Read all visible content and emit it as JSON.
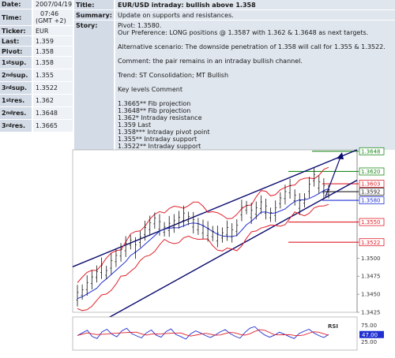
{
  "left_panel": {
    "rows": [
      {
        "label": "Date:",
        "value": "2007/04/19"
      },
      {
        "label": "Time:",
        "value_line1": "07:46",
        "value_line2": "(GMT +2)"
      },
      {
        "label": "Ticker:",
        "value": "EUR"
      },
      {
        "label": "Last:",
        "value": "1.359"
      },
      {
        "label": "Pivot:",
        "value": "1.358"
      },
      {
        "label_num": "1",
        "label_sup": "st",
        "label_rest": " sup.",
        "value": "1.358"
      },
      {
        "label_num": "2",
        "label_sup": "nd",
        "label_rest": " sup.",
        "value": "1.355"
      },
      {
        "label_num": "3",
        "label_sup": "rd",
        "label_rest": " sup.",
        "value": "1.3522"
      },
      {
        "label_num": "1",
        "label_sup": "st",
        "label_rest": " res.",
        "value": "1.362"
      },
      {
        "label_num": "2",
        "label_sup": "nd",
        "label_rest": " res.",
        "value": "1.3648"
      },
      {
        "label_num": "3",
        "label_sup": "rd",
        "label_rest": " res.",
        "value": "1.3665"
      }
    ]
  },
  "story_panel": {
    "title_label": "Title:",
    "title_value": "EUR/USD intraday: bullish above 1.358",
    "summary_label": "Summary:",
    "summary_value": "Update on supports and resistances.",
    "story_label": "Story:",
    "story_lines": [
      "Pivot: 1.3580.",
      "Our Preference: LONG positions @ 1.3587 with 1.362 & 1.3648 as next targets.",
      "",
      "Alternative scenario: The downside penetration of 1.358 will call for 1.355 & 1.3522.",
      "",
      "Comment: the pair remains in an intraday bullish channel.",
      "",
      "Trend: ST Consolidation; MT Bullish",
      "",
      "Key levels Comment",
      "",
      "1.3665** Fib projection",
      "1.3648** Fib projection",
      "1.362* Intraday resistance",
      "1.359 Last",
      "1.358*** Intraday pivot point",
      "1.355** Intraday support",
      "1.3522** Intraday support"
    ]
  },
  "chart_data": {
    "type": "line",
    "instrument": "EUR/USD",
    "price_axis_ticks": [
      1.3648,
      1.362,
      1.3603,
      1.3592,
      1.358,
      1.355,
      1.3522,
      1.35,
      1.3475,
      1.345,
      1.3425
    ],
    "price_axis_labels": [
      "1.3648",
      "1.3620",
      "1.3603",
      "1.3592",
      "1.3580",
      "1.3550",
      "1.3522",
      "1.3500",
      "1.3475",
      "1.3450",
      "1.3425"
    ],
    "ylim": [
      1.3425,
      1.365
    ],
    "levels": [
      {
        "value": 1.3648,
        "label": "1.3648",
        "color": "#1f8a1f"
      },
      {
        "value": 1.362,
        "label": "1.3620",
        "color": "#1f8a1f"
      },
      {
        "value": 1.3603,
        "label": "1.3603",
        "color": "#e0202a"
      },
      {
        "value": 1.3592,
        "label": "1.3592",
        "color": "#222222"
      },
      {
        "value": 1.358,
        "label": "1.3580",
        "color": "#2030d0"
      },
      {
        "value": 1.355,
        "label": "1.3550",
        "color": "#e0202a"
      },
      {
        "value": 1.3522,
        "label": "1.3522",
        "color": "#e0202a"
      }
    ],
    "price_series": [
      1.3448,
      1.3453,
      1.3462,
      1.347,
      1.3478,
      1.3486,
      1.348,
      1.3492,
      1.35,
      1.3508,
      1.3516,
      1.3522,
      1.3514,
      1.3526,
      1.3538,
      1.3545,
      1.3552,
      1.3546,
      1.354,
      1.3544,
      1.3548,
      1.3553,
      1.3558,
      1.3555,
      1.3549,
      1.3544,
      1.354,
      1.3537,
      1.3534,
      1.353,
      1.3532,
      1.3538,
      1.3535,
      1.3542,
      1.3566,
      1.357,
      1.3562,
      1.3566,
      1.3574,
      1.3568,
      1.356,
      1.3565,
      1.358,
      1.3588,
      1.3596,
      1.3584,
      1.3575,
      1.358,
      1.3598,
      1.3612,
      1.3602,
      1.3596,
      1.3592
    ],
    "rsi": {
      "label": "RSI",
      "axis_labels": [
        "75.00",
        "47.00",
        "25.00"
      ],
      "current_label": "47.00",
      "ylim": [
        0,
        100
      ],
      "values": [
        44,
        52,
        60,
        41,
        35,
        55,
        63,
        48,
        40,
        58,
        66,
        50,
        43,
        37,
        52,
        61,
        45,
        39,
        56,
        64,
        47,
        41,
        33,
        49,
        58,
        52,
        44,
        38,
        46,
        55,
        62,
        50,
        42,
        36,
        53,
        66,
        71,
        57,
        46,
        39,
        45,
        54,
        48,
        41,
        35,
        50,
        57,
        63,
        52,
        44,
        38,
        47
      ]
    },
    "grid": false
  },
  "colors": {
    "label_bg": "#d3dbe6",
    "value_bg": "#eef2f7",
    "story_bg": "#dfe6ee",
    "channel": "#0a0a6e",
    "bollinger": "#e0202a",
    "moving_average": "#2030d0",
    "arrow": "#0a0a6e"
  }
}
